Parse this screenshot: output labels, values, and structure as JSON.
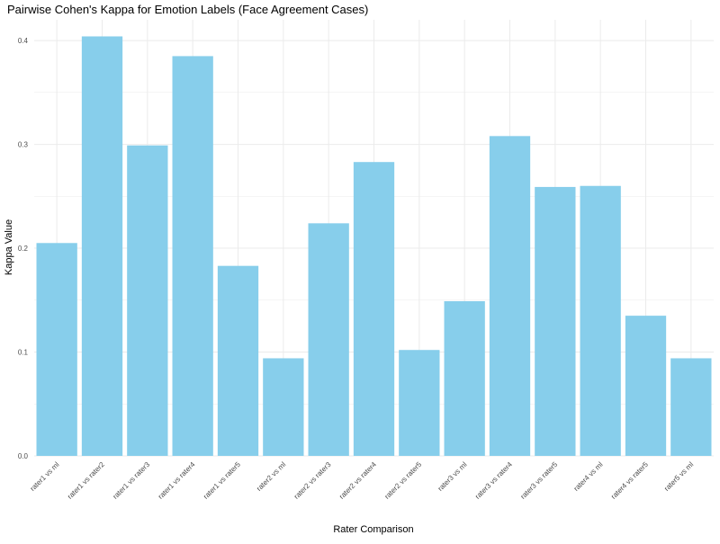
{
  "chart_data": {
    "type": "bar",
    "title": "Pairwise Cohen's Kappa for Emotion Labels (Face Agreement Cases)",
    "xlabel": "Rater Comparison",
    "ylabel": "Kappa Value",
    "categories": [
      "rater1 vs ml",
      "rater1 vs rater2",
      "rater1 vs rater3",
      "rater1 vs rater4",
      "rater1 vs rater5",
      "rater2 vs ml",
      "rater2 vs rater3",
      "rater2 vs rater4",
      "rater2 vs rater5",
      "rater3 vs ml",
      "rater3 vs rater4",
      "rater3 vs rater5",
      "rater4 vs ml",
      "rater4 vs rater5",
      "rater5 vs ml"
    ],
    "values": [
      0.205,
      0.404,
      0.299,
      0.385,
      0.183,
      0.094,
      0.224,
      0.283,
      0.102,
      0.149,
      0.308,
      0.259,
      0.26,
      0.135,
      0.094
    ],
    "ylim": [
      0,
      0.42
    ],
    "yticks": [
      0.0,
      0.1,
      0.2,
      0.3,
      0.4
    ],
    "ytick_labels": [
      "0.0",
      "0.1",
      "0.2",
      "0.3",
      "0.4"
    ],
    "grid": true,
    "legend": "none",
    "bar_color": "#87CEEB",
    "grid_color": "#EBEBEB"
  }
}
